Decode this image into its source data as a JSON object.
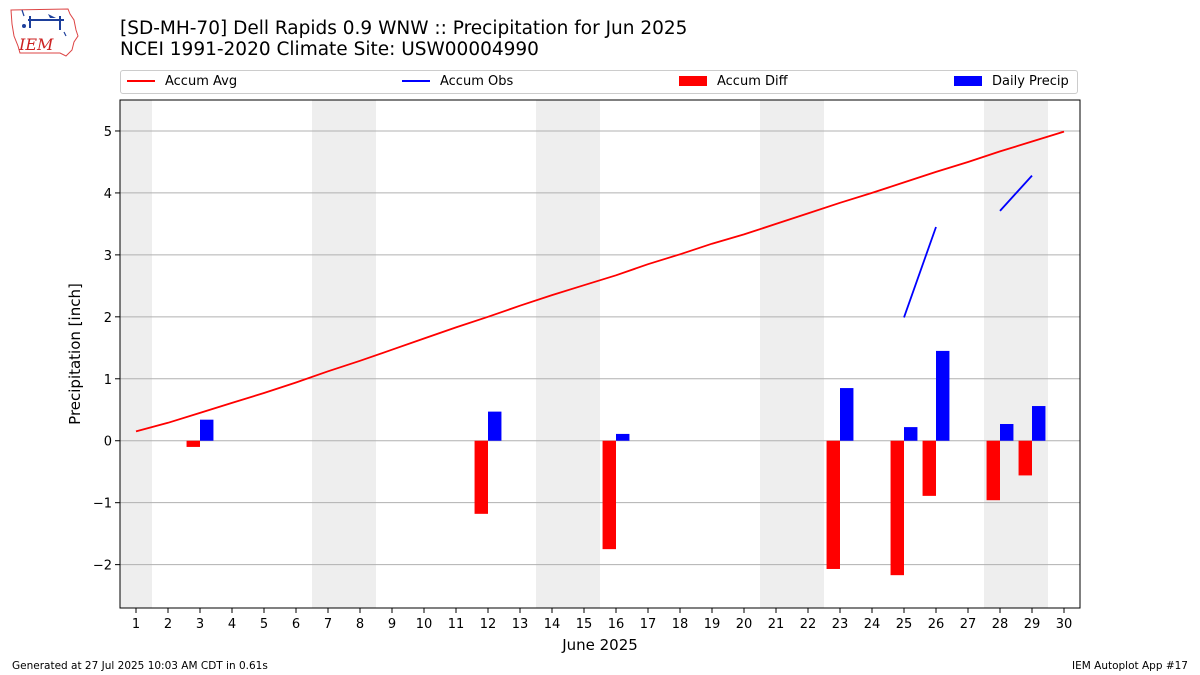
{
  "header": {
    "title_line1": "[SD-MH-70] Dell Rapids 0.9 WNW :: Precipitation for Jun 2025",
    "title_line2": "NCEI 1991-2020 Climate Site: USW00004990",
    "logo_text": "IEM"
  },
  "legend": [
    {
      "label": "Accum Avg",
      "color": "#ff0000",
      "kind": "line"
    },
    {
      "label": "Accum Obs",
      "color": "#0000ff",
      "kind": "line"
    },
    {
      "label": "Accum Diff",
      "color": "#ff0000",
      "kind": "box"
    },
    {
      "label": "Daily Precip",
      "color": "#0000ff",
      "kind": "box"
    }
  ],
  "footer": {
    "left": "Generated at 27 Jul 2025 10:03 AM CDT in 0.61s",
    "right": "IEM Autoplot App #17"
  },
  "chart_data": {
    "type": "bar",
    "xlabel": "June 2025",
    "ylabel": "Precipitation [inch]",
    "xlim": [
      0.5,
      30.5
    ],
    "ylim": [
      -2.7,
      5.5
    ],
    "yticks": [
      -2,
      -1,
      0,
      1,
      2,
      3,
      4,
      5
    ],
    "ytick_labels": [
      "−2",
      "−1",
      "0",
      "1",
      "2",
      "3",
      "4",
      "5"
    ],
    "xticks": [
      1,
      2,
      3,
      4,
      5,
      6,
      7,
      8,
      9,
      10,
      11,
      12,
      13,
      14,
      15,
      16,
      17,
      18,
      19,
      20,
      21,
      22,
      23,
      24,
      25,
      26,
      27,
      28,
      29,
      30
    ],
    "grid": "horizontal",
    "weekend_shading": [
      [
        0.5,
        1.5
      ],
      [
        6.5,
        8.5
      ],
      [
        13.5,
        15.5
      ],
      [
        20.5,
        22.5
      ],
      [
        27.5,
        29.5
      ]
    ],
    "series": [
      {
        "name": "Accum Avg",
        "kind": "line",
        "color": "#ff0000",
        "points": [
          [
            1,
            0.15
          ],
          [
            2,
            0.29
          ],
          [
            3,
            0.45
          ],
          [
            4,
            0.61
          ],
          [
            5,
            0.77
          ],
          [
            6,
            0.94
          ],
          [
            7,
            1.12
          ],
          [
            8,
            1.29
          ],
          [
            9,
            1.47
          ],
          [
            10,
            1.65
          ],
          [
            11,
            1.83
          ],
          [
            12,
            2.0
          ],
          [
            13,
            2.18
          ],
          [
            14,
            2.35
          ],
          [
            15,
            2.51
          ],
          [
            16,
            2.67
          ],
          [
            17,
            2.85
          ],
          [
            18,
            3.01
          ],
          [
            19,
            3.18
          ],
          [
            20,
            3.33
          ],
          [
            21,
            3.5
          ],
          [
            22,
            3.67
          ],
          [
            23,
            3.84
          ],
          [
            24,
            4.0
          ],
          [
            25,
            4.17
          ],
          [
            26,
            4.34
          ],
          [
            27,
            4.5
          ],
          [
            28,
            4.67
          ],
          [
            29,
            4.83
          ],
          [
            30,
            4.99
          ]
        ]
      },
      {
        "name": "Accum Obs",
        "kind": "line",
        "color": "#0000ff",
        "segments": [
          [
            [
              25,
              1.99
            ],
            [
              26,
              3.45
            ]
          ],
          [
            [
              28,
              3.71
            ],
            [
              29,
              4.28
            ]
          ]
        ]
      },
      {
        "name": "Accum Diff",
        "kind": "bar",
        "color": "#ff0000",
        "bars": [
          [
            3,
            -0.1
          ],
          [
            12,
            -1.18
          ],
          [
            16,
            -1.75
          ],
          [
            23,
            -2.07
          ],
          [
            25,
            -2.17
          ],
          [
            26,
            -0.89
          ],
          [
            28,
            -0.96
          ],
          [
            29,
            -0.56
          ]
        ]
      },
      {
        "name": "Daily Precip",
        "kind": "bar",
        "color": "#0000ff",
        "bars": [
          [
            3,
            0.34
          ],
          [
            12,
            0.47
          ],
          [
            16,
            0.11
          ],
          [
            23,
            0.85
          ],
          [
            25,
            0.22
          ],
          [
            26,
            1.45
          ],
          [
            28,
            0.27
          ],
          [
            29,
            0.56
          ]
        ]
      }
    ]
  }
}
